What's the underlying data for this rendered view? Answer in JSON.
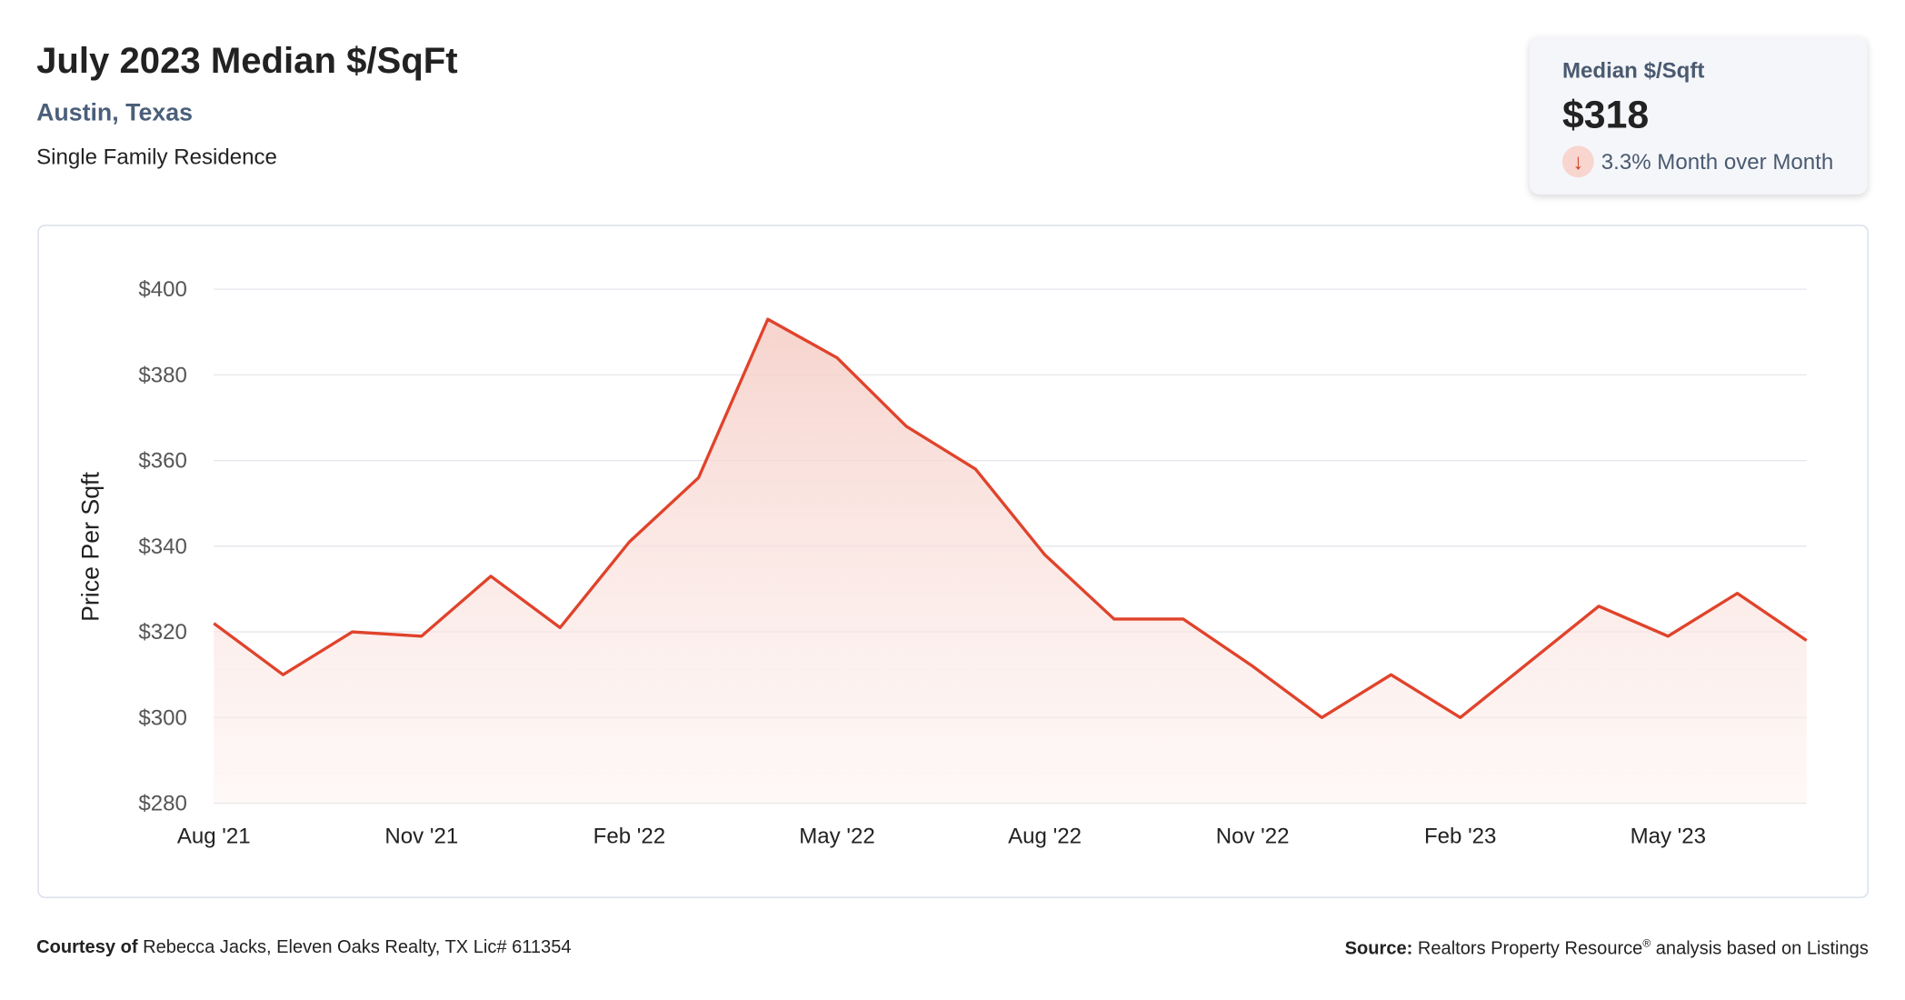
{
  "header": {
    "title": "July 2023 Median $/SqFt",
    "location": "Austin, Texas",
    "property_type": "Single Family Residence"
  },
  "card": {
    "label": "Median $/Sqft",
    "value": "$318",
    "change": "3.3% Month over Month",
    "direction_icon": "arrow-down-icon"
  },
  "colors": {
    "line": "#e0432b",
    "fill": "#f6d3cd",
    "down": "#d23c23"
  },
  "footer": {
    "courtesy_label": "Courtesy of",
    "courtesy_text": "Rebecca Jacks, Eleven Oaks Realty, TX Lic# 611354",
    "source_label": "Source:",
    "source_text": "Realtors Property Resource",
    "source_mark": "®",
    "source_rest": "analysis based on Listings"
  },
  "chart_data": {
    "type": "area",
    "ylabel": "Price Per Sqft",
    "ylim": [
      280,
      400
    ],
    "yticks": [
      280,
      300,
      320,
      340,
      360,
      380,
      400
    ],
    "ytick_labels": [
      "$280",
      "$300",
      "$320",
      "$340",
      "$360",
      "$380",
      "$400"
    ],
    "xtick_labels": [
      "Aug '21",
      "Nov '21",
      "Feb '22",
      "May '22",
      "Aug '22",
      "Nov '22",
      "Feb '23",
      "May '23"
    ],
    "xtick_indices": [
      0,
      3,
      6,
      9,
      12,
      15,
      18,
      21
    ],
    "x": [
      "Aug '21",
      "Sep '21",
      "Oct '21",
      "Nov '21",
      "Dec '21",
      "Jan '22",
      "Feb '22",
      "Mar '22",
      "Apr '22",
      "May '22",
      "Jun '22",
      "Jul '22",
      "Aug '22",
      "Sep '22",
      "Oct '22",
      "Nov '22",
      "Dec '22",
      "Jan '23",
      "Feb '23",
      "Mar '23",
      "Apr '23",
      "May '23",
      "Jun '23",
      "Jul '23"
    ],
    "values": [
      322,
      310,
      320,
      319,
      333,
      321,
      341,
      356,
      393,
      384,
      368,
      358,
      338,
      323,
      323,
      312,
      300,
      310,
      300,
      313,
      326,
      319,
      329,
      318
    ],
    "grid": true
  }
}
